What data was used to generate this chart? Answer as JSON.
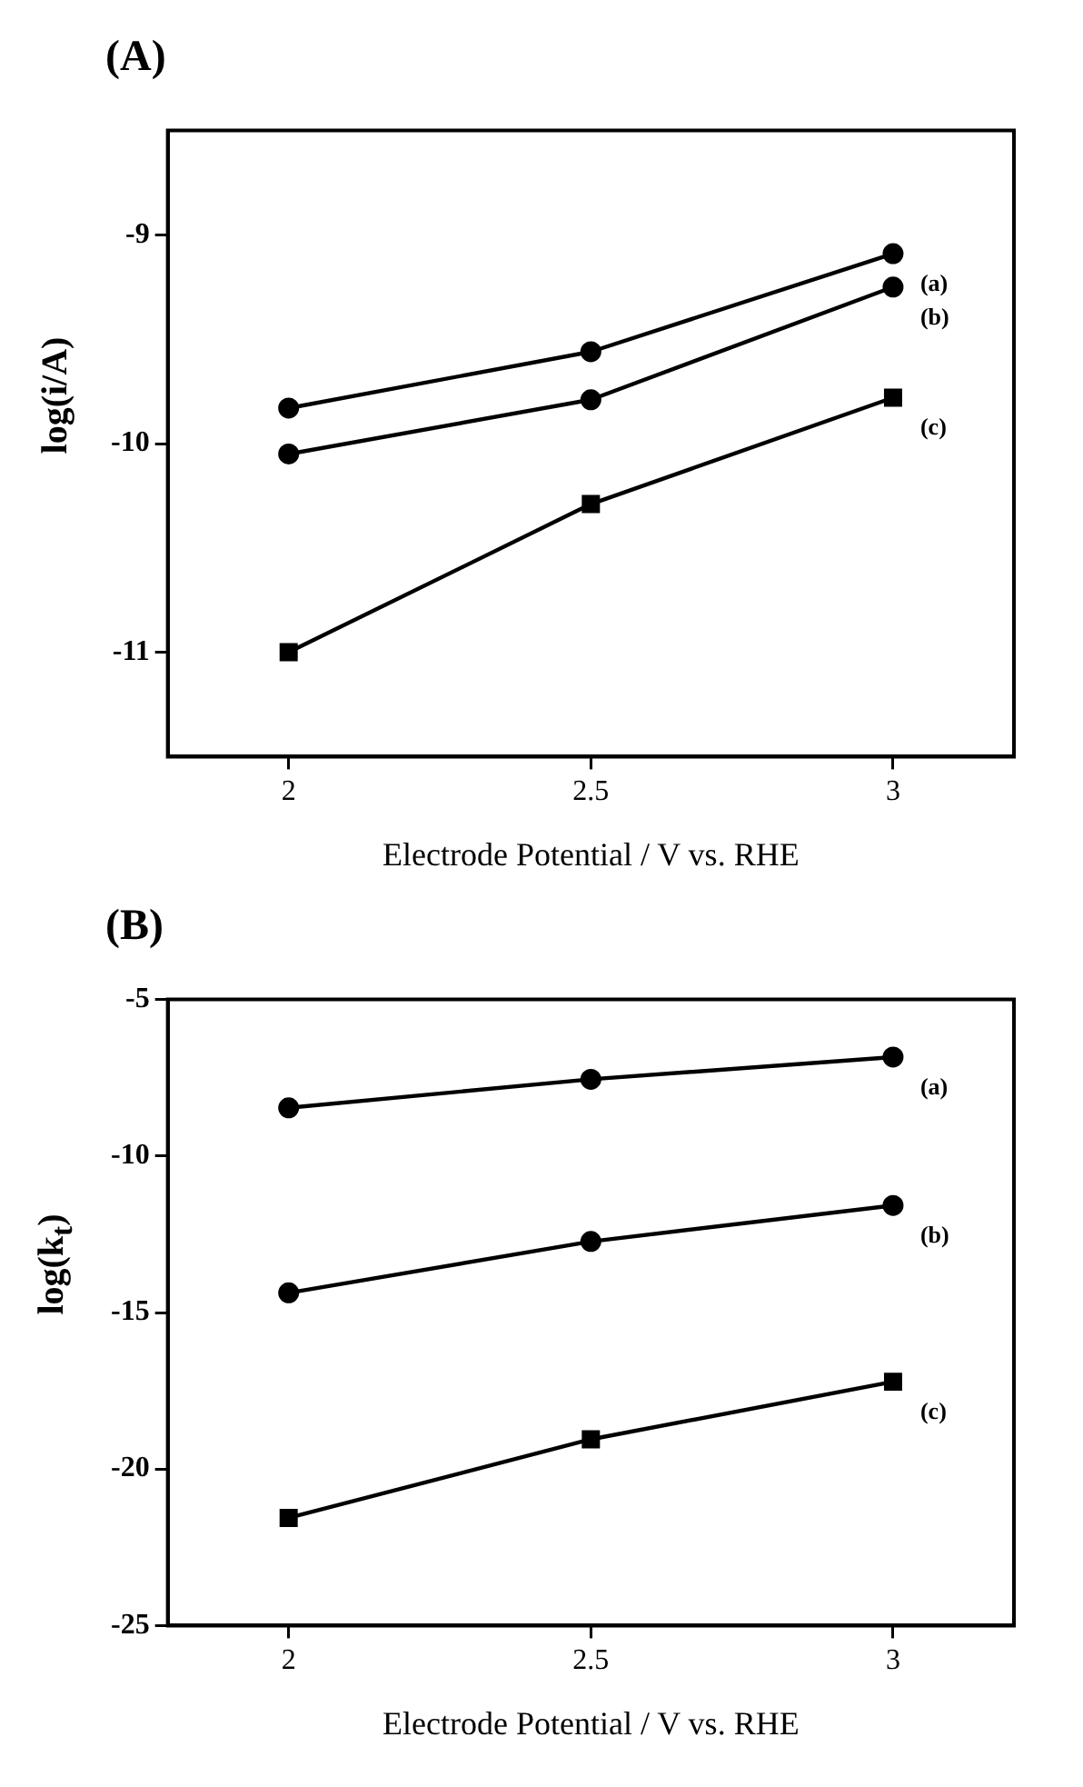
{
  "chart_data": [
    {
      "type": "line",
      "title": "(A)",
      "xlabel": "Electrode Potential / V vs. RHE",
      "ylabel": "log(i/A)",
      "x": [
        2,
        2.5,
        3
      ],
      "xlim": [
        1.8,
        3.2
      ],
      "xticks": [
        2,
        2.5,
        3
      ],
      "ylim": [
        -11.5,
        -8.5
      ],
      "yticks": [
        -9,
        -10,
        -11
      ],
      "grid": false,
      "legend": false,
      "line_style": "solid",
      "series": [
        {
          "name": "(a)",
          "color": "#000000",
          "marker": "circle",
          "values": [
            -9.83,
            -9.56,
            -9.09
          ]
        },
        {
          "name": "(b)",
          "color": "#000000",
          "marker": "circle",
          "values": [
            -10.05,
            -9.79,
            -9.25
          ]
        },
        {
          "name": "(c)",
          "color": "#000000",
          "marker": "square",
          "values": [
            -11.0,
            -10.29,
            -9.78
          ]
        }
      ]
    },
    {
      "type": "line",
      "title": "(B)",
      "xlabel": "Electrode Potential / V vs. RHE",
      "ylabel": "log(k$_{t}$)",
      "x": [
        2,
        2.5,
        3
      ],
      "xlim": [
        1.8,
        3.2
      ],
      "xticks": [
        2,
        2.5,
        3
      ],
      "ylim": [
        -25,
        -5
      ],
      "yticks": [
        -5,
        -10,
        -15,
        -20,
        -25
      ],
      "grid": false,
      "legend": false,
      "line_style": "solid",
      "series": [
        {
          "name": "(a)",
          "color": "#000000",
          "marker": "circle",
          "values": [
            -8.46,
            -7.55,
            -6.84
          ]
        },
        {
          "name": "(b)",
          "color": "#000000",
          "marker": "circle",
          "values": [
            -14.37,
            -12.73,
            -11.58
          ]
        },
        {
          "name": "(c)",
          "color": "#000000",
          "marker": "square",
          "values": [
            -21.56,
            -19.05,
            -17.21
          ]
        }
      ]
    }
  ]
}
